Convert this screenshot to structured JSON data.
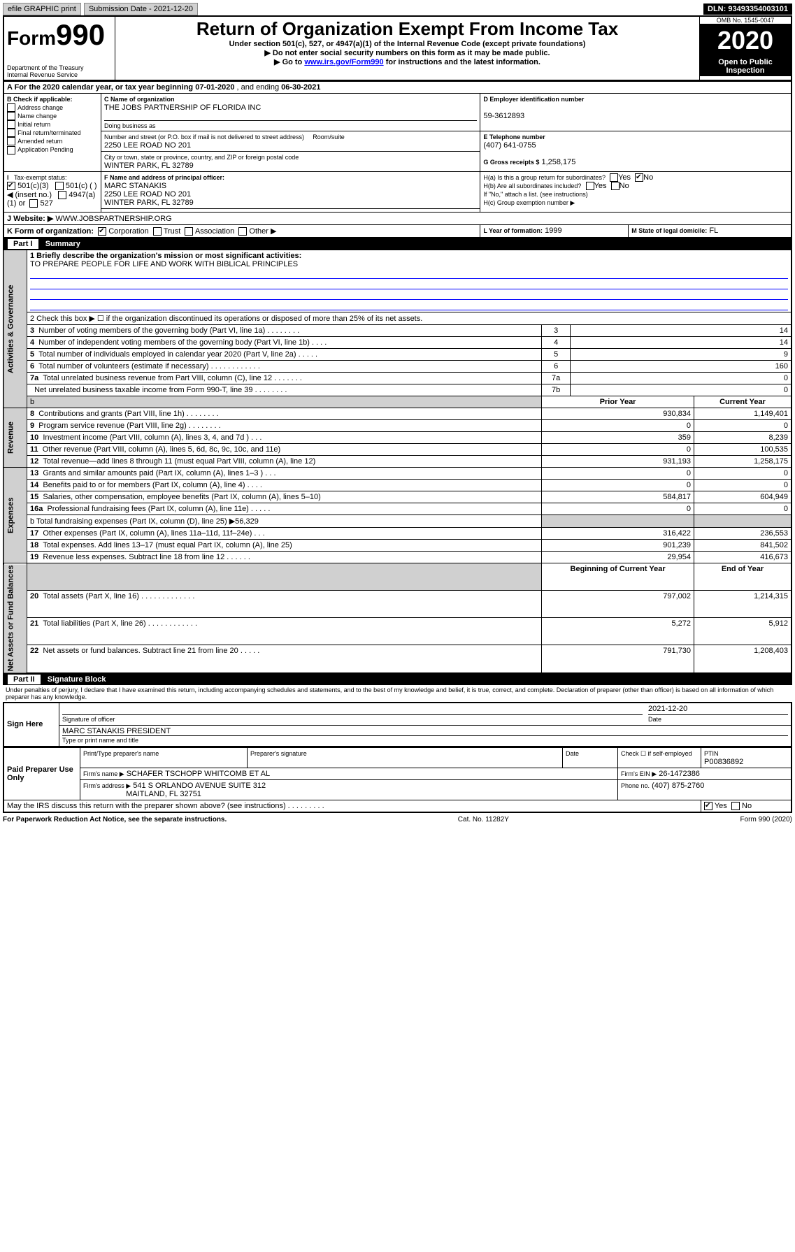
{
  "topbar": {
    "efile": "efile GRAPHIC print",
    "submission_label": "Submission Date - 2021-12-20",
    "dln": "DLN: 93493354003101"
  },
  "header": {
    "form_prefix": "Form",
    "form_number": "990",
    "title": "Return of Organization Exempt From Income Tax",
    "subtitle1": "Under section 501(c), 527, or 4947(a)(1) of the Internal Revenue Code (except private foundations)",
    "subtitle2": "▶ Do not enter social security numbers on this form as it may be made public.",
    "subtitle3_prefix": "▶ Go to ",
    "subtitle3_link": "www.irs.gov/Form990",
    "subtitle3_suffix": " for instructions and the latest information.",
    "dept1": "Department of the Treasury",
    "dept2": "Internal Revenue Service",
    "omb": "OMB No. 1545-0047",
    "year": "2020",
    "open_public": "Open to Public Inspection"
  },
  "sectionA": {
    "tax_year_line_prefix": "A For the 2020 calendar year, or tax year beginning ",
    "begin": "07-01-2020",
    "mid": " , and ending ",
    "end": "06-30-2021",
    "check_label": "B Check if applicable:",
    "chk_addr": "Address change",
    "chk_name": "Name change",
    "chk_init": "Initial return",
    "chk_final": "Final return/terminated",
    "chk_amend": "Amended return",
    "chk_app": "Application Pending",
    "c_label": "C Name of organization",
    "c_org": "THE JOBS PARTNERSHIP OF FLORIDA INC",
    "dba_label": "Doing business as",
    "addr_label": "Number and street (or P.O. box if mail is not delivered to street address)",
    "room_label": "Room/suite",
    "addr": "2250 LEE ROAD NO 201",
    "city_label": "City or town, state or province, country, and ZIP or foreign postal code",
    "city": "WINTER PARK, FL  32789",
    "d_label": "D Employer identification number",
    "d_ein": "59-3612893",
    "e_label": "E Telephone number",
    "e_phone": "(407) 641-0755",
    "g_label": "G Gross receipts $",
    "g_val": "1,258,175",
    "f_label": "F Name and address of principal officer:",
    "f_name": "MARC STANAKIS",
    "f_addr1": "2250 LEE ROAD NO 201",
    "f_addr2": "WINTER PARK, FL  32789",
    "h_a": "H(a)  Is this a group return for subordinates?",
    "h_b": "H(b)  Are all subordinates included?",
    "h_b2": "If \"No,\" attach a list. (see instructions)",
    "h_c": "H(c)  Group exemption number ▶",
    "yes": "Yes",
    "no": "No",
    "tax_exempt": "Tax-exempt status:",
    "c501c3": "501(c)(3)",
    "c501c": "501(c) (    ) ◀ (insert no.)",
    "c4947": "4947(a)(1) or",
    "c527": "527",
    "j_label": "J   Website: ▶",
    "j_site": "WWW.JOBSPARTNERSHIP.ORG",
    "k_label": "K Form of organization:",
    "k_corp": "Corporation",
    "k_trust": "Trust",
    "k_assoc": "Association",
    "k_other": "Other ▶",
    "l_label": "L Year of formation:",
    "l_year": "1999",
    "m_label": "M State of legal domicile:",
    "m_state": "FL"
  },
  "part1": {
    "hdr_part": "Part I",
    "hdr_title": "Summary",
    "side_gov": "Activities & Governance",
    "side_rev": "Revenue",
    "side_exp": "Expenses",
    "side_net": "Net Assets or Fund Balances",
    "line1_label": "1   Briefly describe the organization's mission or most significant activities:",
    "line1_text": "TO PREPARE PEOPLE FOR LIFE AND WORK WITH BIBLICAL PRINCIPLES",
    "line2": "2   Check this box ▶ ☐  if the organization discontinued its operations or disposed of more than 25% of its net assets.",
    "rows_gov": [
      {
        "n": "3",
        "label": "Number of voting members of the governing body (Part VI, line 1a)  .   .   .   .   .   .   .   .",
        "box": "3",
        "val": "14"
      },
      {
        "n": "4",
        "label": "Number of independent voting members of the governing body (Part VI, line 1b)   .   .   .   .",
        "box": "4",
        "val": "14"
      },
      {
        "n": "5",
        "label": "Total number of individuals employed in calendar year 2020 (Part V, line 2a)  .   .   .   .   .",
        "box": "5",
        "val": "9"
      },
      {
        "n": "6",
        "label": "Total number of volunteers (estimate if necessary)  .   .   .   .   .   .   .   .   .   .   .   .",
        "box": "6",
        "val": "160"
      },
      {
        "n": "7a",
        "label": "Total unrelated business revenue from Part VIII, column (C), line 12   .   .   .   .   .   .   .",
        "box": "7a",
        "val": "0"
      },
      {
        "n": "",
        "label": "Net unrelated business taxable income from Form 990-T, line 39   .   .   .   .   .   .   .   .",
        "box": "7b",
        "val": "0"
      }
    ],
    "col_b": "b",
    "prior_year": "Prior Year",
    "current_year": "Current Year",
    "rows_rev": [
      {
        "n": "8",
        "label": "Contributions and grants (Part VIII, line 1h)   .   .   .   .   .   .   .   .",
        "p": "930,834",
        "c": "1,149,401"
      },
      {
        "n": "9",
        "label": "Program service revenue (Part VIII, line 2g)   .   .   .   .   .   .   .   .",
        "p": "0",
        "c": "0"
      },
      {
        "n": "10",
        "label": "Investment income (Part VIII, column (A), lines 3, 4, and 7d )   .   .   .",
        "p": "359",
        "c": "8,239"
      },
      {
        "n": "11",
        "label": "Other revenue (Part VIII, column (A), lines 5, 6d, 8c, 9c, 10c, and 11e)",
        "p": "0",
        "c": "100,535"
      },
      {
        "n": "12",
        "label": "Total revenue—add lines 8 through 11 (must equal Part VIII, column (A), line 12)",
        "p": "931,193",
        "c": "1,258,175"
      }
    ],
    "rows_exp": [
      {
        "n": "13",
        "label": "Grants and similar amounts paid (Part IX, column (A), lines 1–3 )   .   .   .",
        "p": "0",
        "c": "0"
      },
      {
        "n": "14",
        "label": "Benefits paid to or for members (Part IX, column (A), line 4)   .   .   .   .",
        "p": "0",
        "c": "0"
      },
      {
        "n": "15",
        "label": "Salaries, other compensation, employee benefits (Part IX, column (A), lines 5–10)",
        "p": "584,817",
        "c": "604,949"
      },
      {
        "n": "16a",
        "label": "Professional fundraising fees (Part IX, column (A), line 11e)   .   .   .   .   .",
        "p": "0",
        "c": "0"
      }
    ],
    "line16b": "b   Total fundraising expenses (Part IX, column (D), line 25) ▶56,329",
    "rows_exp2": [
      {
        "n": "17",
        "label": "Other expenses (Part IX, column (A), lines 11a–11d, 11f–24e)   .   .   .",
        "p": "316,422",
        "c": "236,553"
      },
      {
        "n": "18",
        "label": "Total expenses. Add lines 13–17 (must equal Part IX, column (A), line 25)",
        "p": "901,239",
        "c": "841,502"
      },
      {
        "n": "19",
        "label": "Revenue less expenses. Subtract line 18 from line 12   .   .   .   .   .   .",
        "p": "29,954",
        "c": "416,673"
      }
    ],
    "begin_year": "Beginning of Current Year",
    "end_year": "End of Year",
    "rows_net": [
      {
        "n": "20",
        "label": "Total assets (Part X, line 16)   .   .   .   .   .   .   .   .   .   .   .   .   .",
        "p": "797,002",
        "c": "1,214,315"
      },
      {
        "n": "21",
        "label": "Total liabilities (Part X, line 26)   .   .   .   .   .   .   .   .   .   .   .   .",
        "p": "5,272",
        "c": "5,912"
      },
      {
        "n": "22",
        "label": "Net assets or fund balances. Subtract line 21 from line 20   .   .   .   .   .",
        "p": "791,730",
        "c": "1,208,403"
      }
    ]
  },
  "part2": {
    "hdr_part": "Part II",
    "hdr_title": "Signature Block",
    "perjury": "Under penalties of perjury, I declare that I have examined this return, including accompanying schedules and statements, and to the best of my knowledge and belief, it is true, correct, and complete. Declaration of preparer (other than officer) is based on all information of which preparer has any knowledge.",
    "sign_here": "Sign Here",
    "sig_officer": "Signature of officer",
    "sig_date_label": "Date",
    "sig_date": "2021-12-20",
    "sig_name": "MARC STANAKIS PRESIDENT",
    "sig_type": "Type or print name and title",
    "paid": "Paid Preparer Use Only",
    "prep_name_label": "Print/Type preparer's name",
    "prep_sig_label": "Preparer's signature",
    "prep_date_label": "Date",
    "check_self": "Check ☐ if self-employed",
    "ptin_label": "PTIN",
    "ptin": "P00836892",
    "firm_name_label": "Firm's name    ▶",
    "firm_name": "SCHAFER TSCHOPP WHITCOMB ET AL",
    "firm_ein_label": "Firm's EIN ▶",
    "firm_ein": "26-1472386",
    "firm_addr_label": "Firm's address ▶",
    "firm_addr1": "541 S ORLANDO AVENUE SUITE 312",
    "firm_addr2": "MAITLAND, FL  32751",
    "firm_phone_label": "Phone no.",
    "firm_phone": "(407) 875-2760",
    "discuss": "May the IRS discuss this return with the preparer shown above? (see instructions)   .   .   .   .   .   .   .   .   .",
    "yes": "Yes",
    "no": "No"
  },
  "footer": {
    "pra": "For Paperwork Reduction Act Notice, see the separate instructions.",
    "cat": "Cat. No. 11282Y",
    "form": "Form 990 (2020)"
  }
}
